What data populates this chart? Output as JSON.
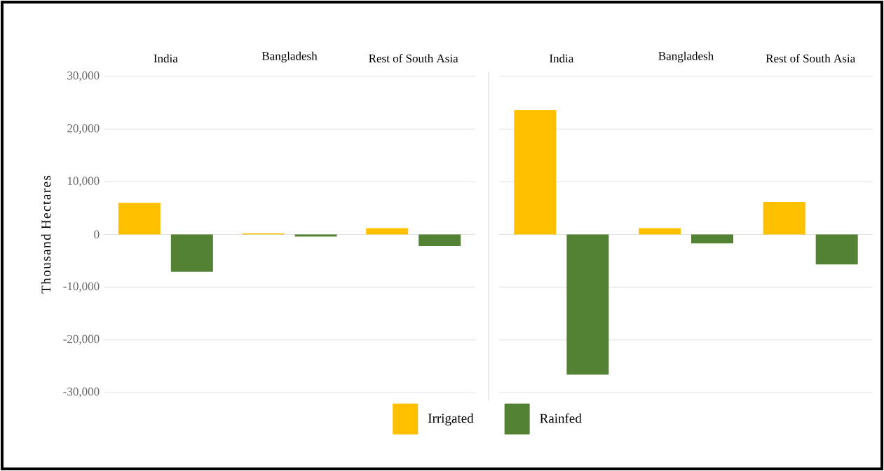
{
  "chart_data": [
    {
      "type": "bar",
      "ylabel": "Thousand Hectares",
      "categories": [
        "India",
        "Bangladesh",
        "Rest of South Asia"
      ],
      "series": [
        {
          "name": "Irrigated",
          "color": "#ffc000",
          "values": [
            6000,
            200,
            1200
          ]
        },
        {
          "name": "Rainfed",
          "color": "#548235",
          "values": [
            -7100,
            -400,
            -2200
          ]
        }
      ],
      "ylim": [
        -30000,
        30000
      ],
      "yticks": [
        {
          "value": -30000,
          "label": "-30,000"
        },
        {
          "value": -20000,
          "label": "-20,000"
        },
        {
          "value": -10000,
          "label": "-10,000"
        },
        0,
        {
          "value": 10000,
          "label": "10,000"
        },
        {
          "value": 20000,
          "label": "20,000"
        },
        {
          "value": 30000,
          "label": "30,000"
        }
      ],
      "grid": "y",
      "legend": "bottom"
    },
    {
      "type": "bar",
      "categories": [
        "India",
        "Bangladesh",
        "Rest of South Asia"
      ],
      "series": [
        {
          "color": "#ffc000",
          "values": [
            23600,
            1200,
            6200
          ]
        },
        {
          "color": "#548235",
          "values": [
            -26600,
            -1700,
            -5700
          ]
        }
      ],
      "ylim": [
        -30000,
        30000
      ],
      "yticks": [
        -30000,
        -20000,
        -10000,
        0,
        10000,
        20000,
        30000
      ],
      "grid": "y",
      "tick_labels": "x"
    }
  ]
}
